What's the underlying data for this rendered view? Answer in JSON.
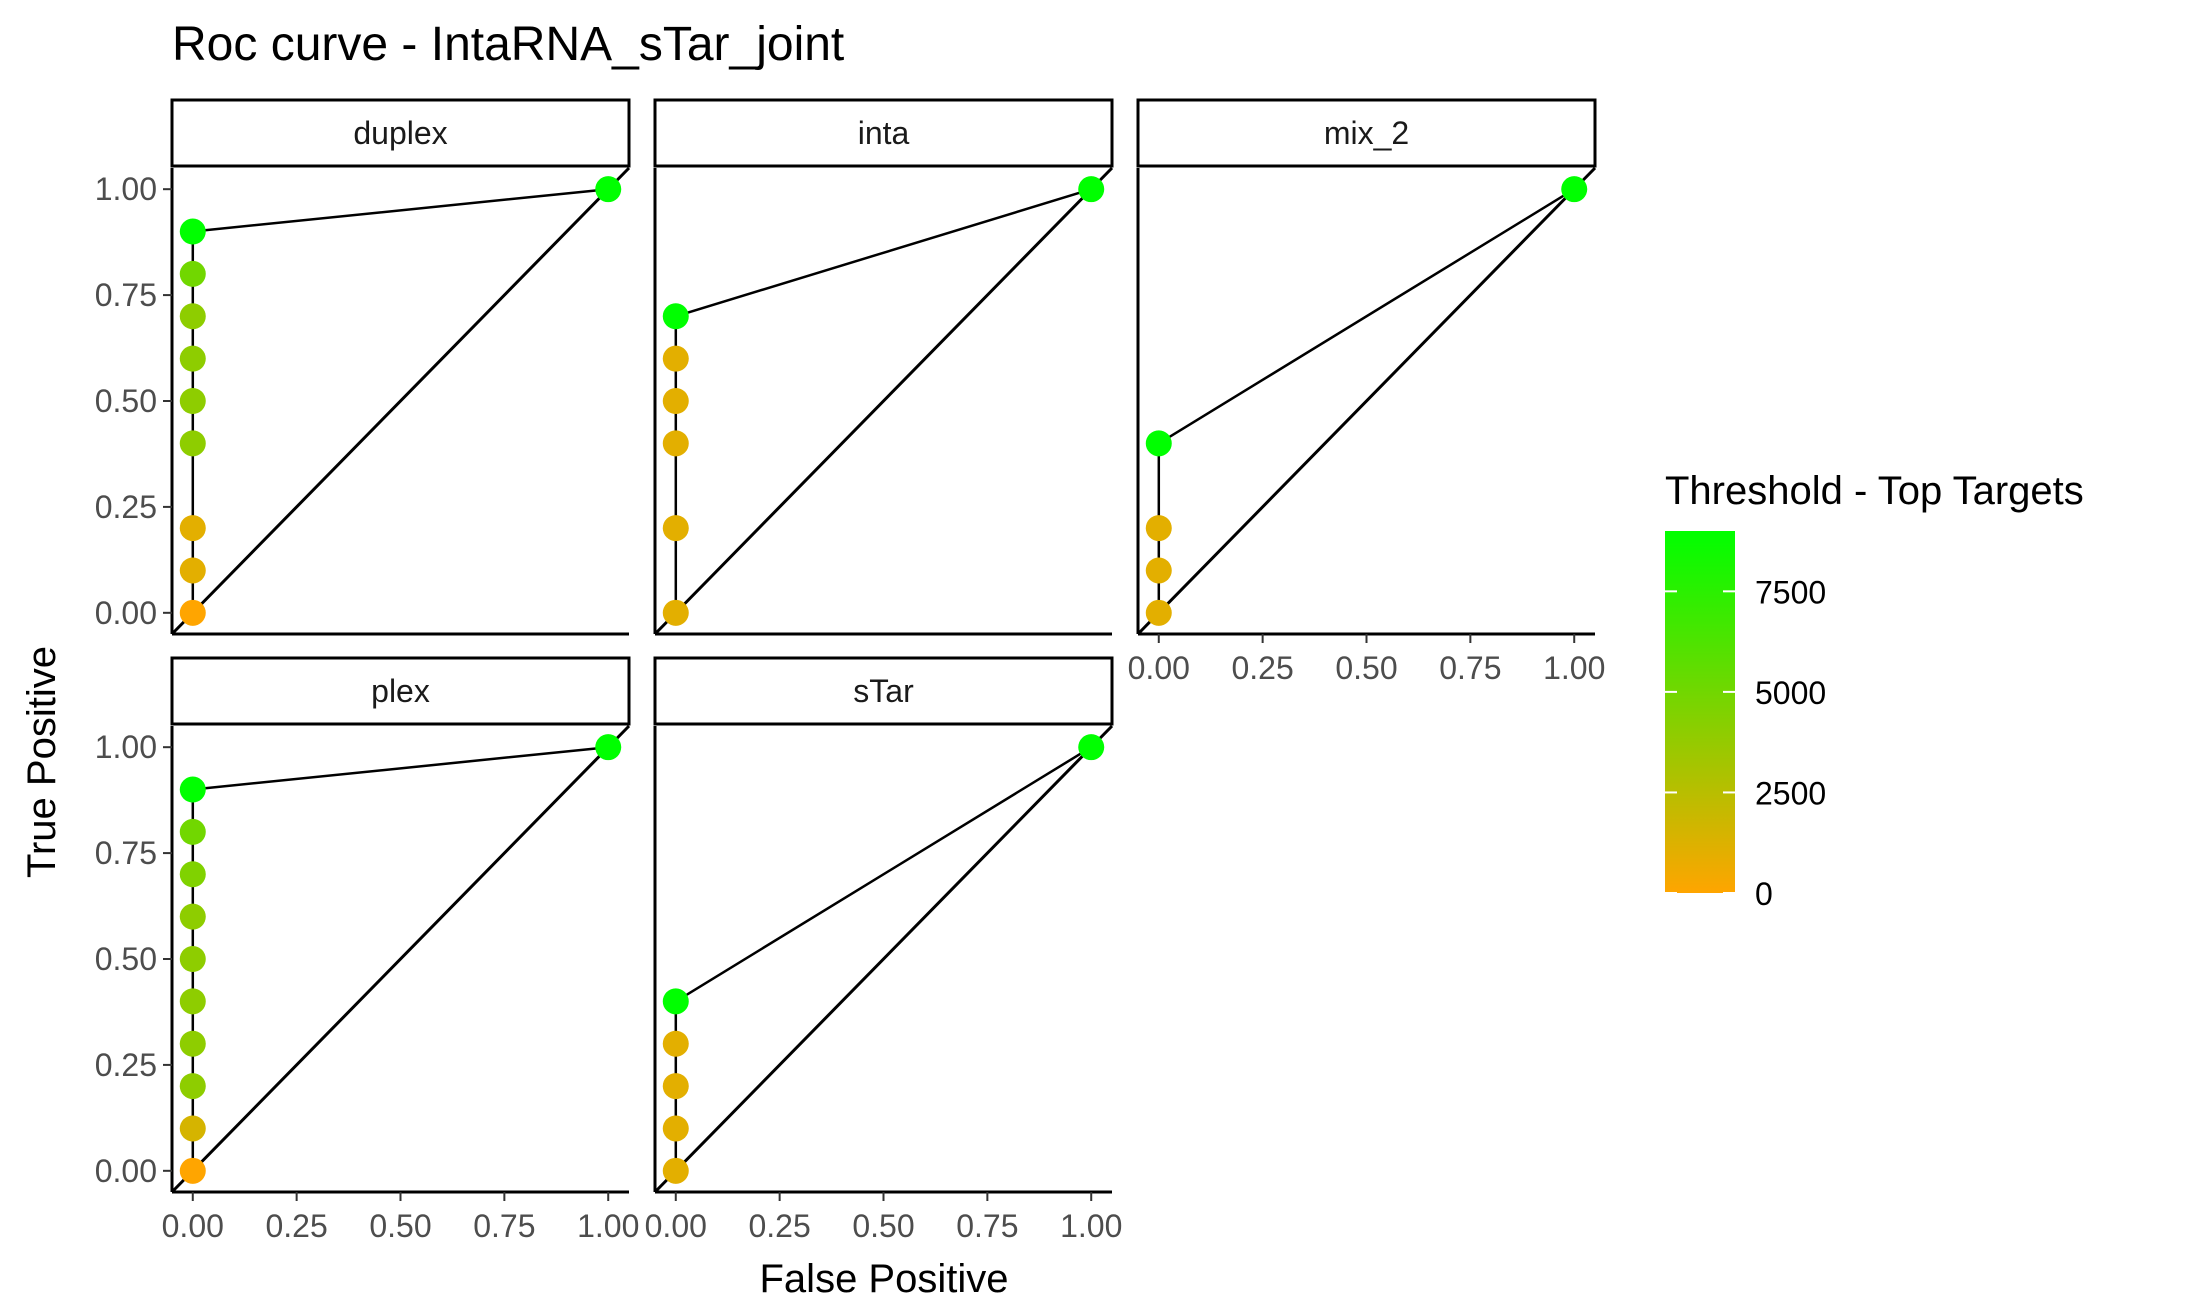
{
  "chart_data": {
    "type": "scatter",
    "title": "Roc curve - IntaRNA_sTar_joint",
    "xlabel": "False Positive",
    "ylabel": "True Positive",
    "xlim": [
      -0.05,
      1.05
    ],
    "ylim": [
      -0.05,
      1.05
    ],
    "x_ticks": [
      "0.00",
      "0.25",
      "0.50",
      "0.75",
      "1.00"
    ],
    "y_ticks": [
      "0.00",
      "0.25",
      "0.50",
      "0.75",
      "1.00"
    ],
    "legend": {
      "title": "Threshold - Top Targets",
      "position": "right",
      "breaks": [
        "0",
        "2500",
        "5000",
        "7500"
      ],
      "min": 0,
      "max": 9000,
      "low_color": "#FFA500",
      "high_color": "#00FF00"
    },
    "grid": false,
    "panels": [
      {
        "facet": "duplex",
        "points": [
          {
            "x": 0,
            "y": 0,
            "threshold": 0
          },
          {
            "x": 0,
            "y": 0.1,
            "threshold": 1000
          },
          {
            "x": 0,
            "y": 0.2,
            "threshold": 1000
          },
          {
            "x": 0,
            "y": 0.4,
            "threshold": 4000
          },
          {
            "x": 0,
            "y": 0.5,
            "threshold": 4000
          },
          {
            "x": 0,
            "y": 0.6,
            "threshold": 4000
          },
          {
            "x": 0,
            "y": 0.7,
            "threshold": 4000
          },
          {
            "x": 0,
            "y": 0.8,
            "threshold": 5000
          },
          {
            "x": 0,
            "y": 0.9,
            "threshold": 9000
          },
          {
            "x": 1,
            "y": 1,
            "threshold": 9000
          }
        ]
      },
      {
        "facet": "inta",
        "points": [
          {
            "x": 0,
            "y": 0,
            "threshold": 1000
          },
          {
            "x": 0,
            "y": 0.2,
            "threshold": 1000
          },
          {
            "x": 0,
            "y": 0.4,
            "threshold": 1000
          },
          {
            "x": 0,
            "y": 0.5,
            "threshold": 1000
          },
          {
            "x": 0,
            "y": 0.6,
            "threshold": 1000
          },
          {
            "x": 0,
            "y": 0.7,
            "threshold": 9000
          },
          {
            "x": 1,
            "y": 1,
            "threshold": 9000
          }
        ]
      },
      {
        "facet": "mix_2",
        "points": [
          {
            "x": 0,
            "y": 0,
            "threshold": 1000
          },
          {
            "x": 0,
            "y": 0.1,
            "threshold": 1000
          },
          {
            "x": 0,
            "y": 0.2,
            "threshold": 1000
          },
          {
            "x": 0,
            "y": 0.4,
            "threshold": 9000
          },
          {
            "x": 1,
            "y": 1,
            "threshold": 9000
          }
        ]
      },
      {
        "facet": "plex",
        "points": [
          {
            "x": 0,
            "y": 0,
            "threshold": 0
          },
          {
            "x": 0,
            "y": 0.1,
            "threshold": 1500
          },
          {
            "x": 0,
            "y": 0.2,
            "threshold": 4000
          },
          {
            "x": 0,
            "y": 0.3,
            "threshold": 4000
          },
          {
            "x": 0,
            "y": 0.4,
            "threshold": 4000
          },
          {
            "x": 0,
            "y": 0.5,
            "threshold": 4000
          },
          {
            "x": 0,
            "y": 0.6,
            "threshold": 4000
          },
          {
            "x": 0,
            "y": 0.7,
            "threshold": 4500
          },
          {
            "x": 0,
            "y": 0.8,
            "threshold": 5000
          },
          {
            "x": 0,
            "y": 0.9,
            "threshold": 9000
          },
          {
            "x": 1,
            "y": 1,
            "threshold": 9000
          }
        ]
      },
      {
        "facet": "sTar",
        "points": [
          {
            "x": 0,
            "y": 0,
            "threshold": 1000
          },
          {
            "x": 0,
            "y": 0.1,
            "threshold": 1000
          },
          {
            "x": 0,
            "y": 0.2,
            "threshold": 1000
          },
          {
            "x": 0,
            "y": 0.3,
            "threshold": 1000
          },
          {
            "x": 0,
            "y": 0.4,
            "threshold": 9000
          },
          {
            "x": 1,
            "y": 1,
            "threshold": 9000
          }
        ]
      }
    ]
  }
}
